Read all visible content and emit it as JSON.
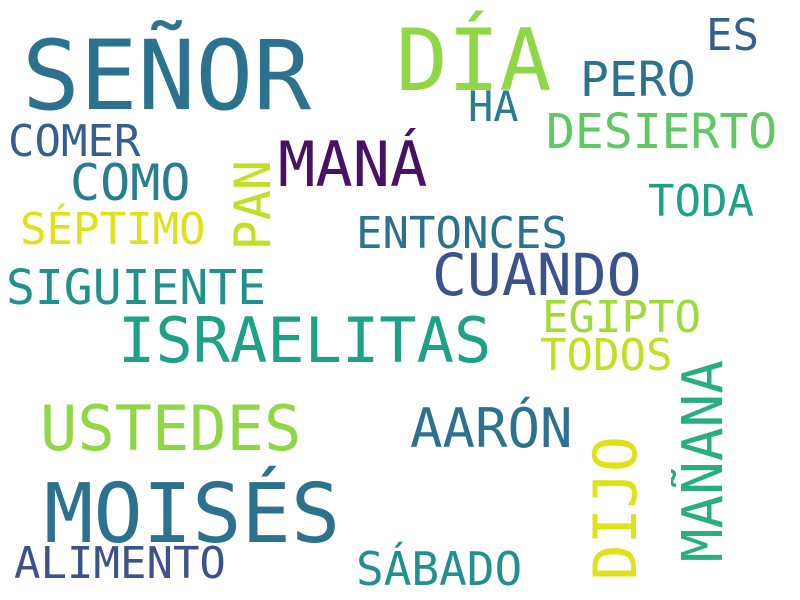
{
  "colors": {
    "background": "#ffffff",
    "dark_purple": "#471164",
    "indigo": "#3b528b",
    "slate_blue": "#355f8d",
    "steel_blue": "#2c728e",
    "teal_blue": "#287d8e",
    "teal": "#21918c",
    "sea_green": "#1fa187",
    "green_teal": "#28ae80",
    "green": "#5ec962",
    "light_green": "#8fd744",
    "lime": "#a0da39",
    "yellow_green": "#c2df23",
    "yellow": "#dde318"
  },
  "words": {
    "senor": "SEÑOR",
    "dia": "DÍA",
    "es": "ES",
    "pero": "PERO",
    "ha": "HA",
    "desierto": "DESIERTO",
    "comer": "COMER",
    "mana": "MANÁ",
    "como": "COMO",
    "pan": "PAN",
    "toda": "TODA",
    "septimo": "SÉPTIMO",
    "entonces": "ENTONCES",
    "cuando": "CUANDO",
    "siguiente": "SIGUIENTE",
    "egipto": "EGIPTO",
    "israelitas": "ISRAELITAS",
    "todos": "TODOS",
    "ustedes": "USTEDES",
    "aaron": "AARÓN",
    "dijo": "DIJO",
    "manana": "MAÑANA",
    "moises": "MOISÉS",
    "alimento": "ALIMENTO",
    "sabado": "SÁBADO"
  }
}
